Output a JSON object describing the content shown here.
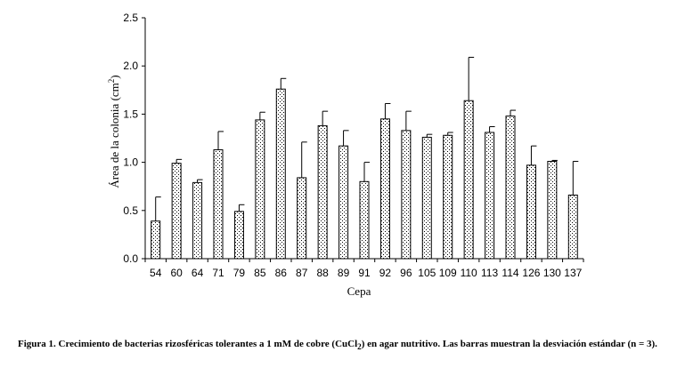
{
  "chart_data": {
    "type": "bar",
    "xlabel": "Cepa",
    "ylabel_parts": [
      "Área de la colonia (cm",
      "2",
      ")"
    ],
    "ylim": [
      0,
      2.5
    ],
    "yticks": [
      "0.0",
      "0.5",
      "1.0",
      "1.5",
      "2.0",
      "2.5"
    ],
    "categories": [
      "54",
      "60",
      "64",
      "71",
      "79",
      "85",
      "86",
      "87",
      "88",
      "89",
      "91",
      "92",
      "96",
      "105",
      "109",
      "110",
      "113",
      "114",
      "126",
      "130",
      "137"
    ],
    "values": [
      0.39,
      0.99,
      0.79,
      1.13,
      0.49,
      1.44,
      1.76,
      0.84,
      1.38,
      1.17,
      0.8,
      1.45,
      1.33,
      1.26,
      1.28,
      1.64,
      1.31,
      1.48,
      0.97,
      1.01,
      0.66
    ],
    "errors": [
      0.25,
      0.04,
      0.03,
      0.19,
      0.07,
      0.08,
      0.11,
      0.37,
      0.15,
      0.16,
      0.2,
      0.16,
      0.2,
      0.03,
      0.03,
      0.45,
      0.06,
      0.06,
      0.2,
      0.01,
      0.35
    ],
    "bar_pattern": "dotted",
    "grid": false,
    "legend": "none"
  },
  "caption": {
    "before_sub": "Figura 1. Crecimiento de bacterias rizosféricas tolerantes a 1 mM de cobre (CuCl",
    "sub": "2",
    "after_sub": ") en agar nutritivo. Las barras muestran la desviación estándar (n = 3)."
  }
}
